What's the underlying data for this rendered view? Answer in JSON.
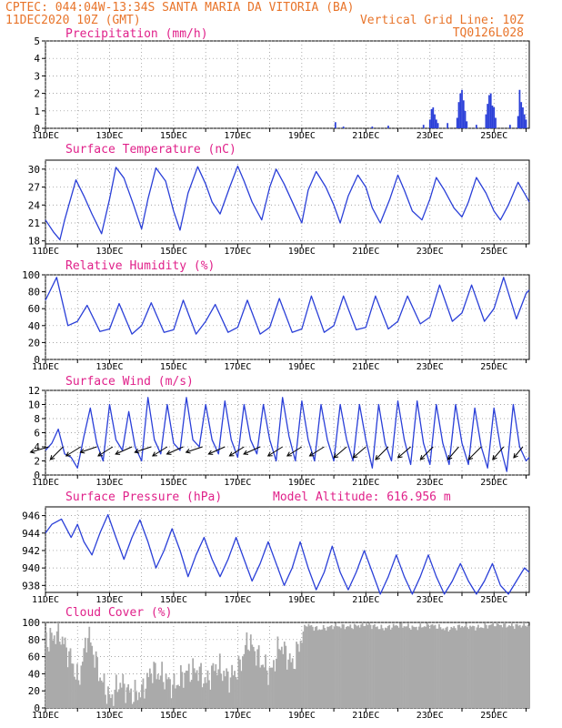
{
  "header": {
    "line1": "CPTEC:  044:04W-13:34S  SANTA MARIA DA VITORIA (BA)",
    "line2_left": "11DEC2020 10Z (GMT)",
    "line2_right": "Vertical Grid Line: 10Z",
    "line3_right": "TQ0126L028"
  },
  "colors": {
    "line": "#2a3fd8",
    "title": "#e0218a",
    "header": "#e8742a",
    "cloud": "#aaaaaa",
    "grid": "#888888"
  },
  "x_labels": [
    "11DEC",
    "13DEC",
    "15DEC",
    "17DEC",
    "19DEC",
    "21DEC",
    "23DEC",
    "25DEC"
  ],
  "chart_data": [
    {
      "type": "bar",
      "title": "Precipitation (mm/h)",
      "ylim": [
        0,
        5
      ],
      "yticks": [
        0,
        1,
        2,
        3,
        4,
        5
      ],
      "x_start_day": 11,
      "x_end_day": 26.1,
      "bars": [
        {
          "x": 20.05,
          "v": 0.35
        },
        {
          "x": 20.3,
          "v": 0.1
        },
        {
          "x": 21.2,
          "v": 0.1
        },
        {
          "x": 21.7,
          "v": 0.15
        },
        {
          "x": 22.8,
          "v": 0.2
        },
        {
          "x": 23.0,
          "v": 0.5
        },
        {
          "x": 23.05,
          "v": 1.1
        },
        {
          "x": 23.1,
          "v": 1.2
        },
        {
          "x": 23.15,
          "v": 0.8
        },
        {
          "x": 23.2,
          "v": 0.5
        },
        {
          "x": 23.25,
          "v": 0.3
        },
        {
          "x": 23.55,
          "v": 0.3
        },
        {
          "x": 23.85,
          "v": 0.6
        },
        {
          "x": 23.9,
          "v": 1.5
        },
        {
          "x": 23.95,
          "v": 2.0
        },
        {
          "x": 24.0,
          "v": 2.2
        },
        {
          "x": 24.05,
          "v": 1.6
        },
        {
          "x": 24.1,
          "v": 1.0
        },
        {
          "x": 24.15,
          "v": 0.4
        },
        {
          "x": 24.45,
          "v": 0.2
        },
        {
          "x": 24.75,
          "v": 0.8
        },
        {
          "x": 24.8,
          "v": 1.4
        },
        {
          "x": 24.85,
          "v": 1.9
        },
        {
          "x": 24.9,
          "v": 2.0
        },
        {
          "x": 24.95,
          "v": 1.3
        },
        {
          "x": 25.0,
          "v": 1.2
        },
        {
          "x": 25.05,
          "v": 0.6
        },
        {
          "x": 25.5,
          "v": 0.2
        },
        {
          "x": 25.75,
          "v": 0.7
        },
        {
          "x": 25.8,
          "v": 2.2
        },
        {
          "x": 25.85,
          "v": 1.5
        },
        {
          "x": 25.9,
          "v": 1.2
        },
        {
          "x": 25.95,
          "v": 0.8
        },
        {
          "x": 26.0,
          "v": 0.5
        }
      ]
    },
    {
      "type": "line",
      "title": "Surface Temperature (nC)",
      "ylim": [
        17.5,
        31.5
      ],
      "yticks": [
        18,
        21,
        24,
        27,
        30
      ],
      "x_start_day": 11,
      "x_end_day": 26.1,
      "x": [
        11.0,
        11.25,
        11.45,
        11.6,
        11.95,
        12.2,
        12.45,
        12.75,
        13.0,
        13.2,
        13.45,
        13.75,
        14.0,
        14.2,
        14.45,
        14.75,
        15.0,
        15.2,
        15.45,
        15.75,
        16.0,
        16.2,
        16.45,
        16.75,
        17.0,
        17.2,
        17.45,
        17.75,
        18.0,
        18.2,
        18.45,
        18.75,
        19.0,
        19.2,
        19.45,
        19.75,
        20.0,
        20.2,
        20.45,
        20.75,
        21.0,
        21.2,
        21.45,
        21.75,
        22.0,
        22.2,
        22.45,
        22.75,
        23.0,
        23.2,
        23.45,
        23.75,
        24.0,
        24.2,
        24.45,
        24.75,
        25.0,
        25.2,
        25.45,
        25.75,
        26.0,
        26.1
      ],
      "y": [
        21.5,
        19.5,
        18.2,
        21.5,
        28.2,
        25.5,
        22.5,
        19.2,
        25.0,
        30.3,
        28.5,
        24.0,
        20.0,
        25.0,
        30.2,
        28.0,
        23.0,
        19.8,
        26.0,
        30.4,
        27.5,
        24.5,
        22.5,
        27.0,
        30.5,
        28.0,
        24.5,
        21.5,
        27.0,
        30.0,
        27.5,
        24.0,
        21.0,
        26.5,
        29.6,
        27.0,
        24.0,
        21.0,
        25.5,
        29.0,
        27.0,
        23.5,
        21.0,
        25.0,
        29.0,
        26.5,
        23.0,
        21.5,
        25.0,
        28.6,
        26.5,
        23.5,
        22.0,
        24.5,
        28.6,
        26.0,
        23.0,
        21.5,
        24.0,
        27.8,
        25.5,
        24.5
      ]
    },
    {
      "type": "line",
      "title": "Relative Humidity (%)",
      "ylim": [
        0,
        100
      ],
      "yticks": [
        0,
        20,
        40,
        60,
        80,
        100
      ],
      "x_start_day": 11,
      "x_end_day": 26.1,
      "x": [
        11.0,
        11.35,
        11.7,
        12.0,
        12.3,
        12.7,
        13.0,
        13.3,
        13.7,
        14.0,
        14.3,
        14.7,
        15.0,
        15.3,
        15.7,
        16.0,
        16.3,
        16.7,
        17.0,
        17.3,
        17.7,
        18.0,
        18.3,
        18.7,
        19.0,
        19.3,
        19.7,
        20.0,
        20.3,
        20.7,
        21.0,
        21.3,
        21.7,
        22.0,
        22.3,
        22.7,
        23.0,
        23.3,
        23.7,
        24.0,
        24.3,
        24.7,
        25.0,
        25.3,
        25.7,
        26.0,
        26.1
      ],
      "y": [
        70,
        97,
        40,
        45,
        64,
        33,
        36,
        66,
        30,
        40,
        67,
        32,
        35,
        70,
        30,
        45,
        65,
        32,
        38,
        70,
        30,
        38,
        72,
        32,
        36,
        75,
        32,
        40,
        75,
        35,
        38,
        75,
        36,
        45,
        75,
        42,
        50,
        88,
        45,
        55,
        88,
        45,
        60,
        97,
        48,
        78,
        82
      ]
    },
    {
      "type": "line",
      "title": "Surface Wind (m/s)",
      "ylim": [
        0,
        12
      ],
      "yticks": [
        0,
        2,
        4,
        6,
        8,
        10,
        12
      ],
      "x_start_day": 11,
      "x_end_day": 26.1,
      "x": [
        11.0,
        11.2,
        11.4,
        11.6,
        11.8,
        12.0,
        12.2,
        12.4,
        12.6,
        12.8,
        13.0,
        13.2,
        13.4,
        13.6,
        13.8,
        14.0,
        14.2,
        14.4,
        14.6,
        14.8,
        15.0,
        15.2,
        15.4,
        15.6,
        15.8,
        16.0,
        16.2,
        16.4,
        16.6,
        16.8,
        17.0,
        17.2,
        17.4,
        17.6,
        17.8,
        18.0,
        18.2,
        18.4,
        18.6,
        18.8,
        19.0,
        19.2,
        19.4,
        19.6,
        19.8,
        20.0,
        20.2,
        20.4,
        20.6,
        20.8,
        21.0,
        21.2,
        21.4,
        21.6,
        21.8,
        22.0,
        22.2,
        22.4,
        22.6,
        22.8,
        23.0,
        23.2,
        23.4,
        23.6,
        23.8,
        24.0,
        24.2,
        24.4,
        24.6,
        24.8,
        25.0,
        25.2,
        25.4,
        25.6,
        25.8,
        26.0,
        26.1
      ],
      "y": [
        3.5,
        4.5,
        6.5,
        3.0,
        2.5,
        1.0,
        5.5,
        9.5,
        4.5,
        2.0,
        10.0,
        5.0,
        3.5,
        9.0,
        4.0,
        2.0,
        11.0,
        5.0,
        3.0,
        10.0,
        4.5,
        3.5,
        11.0,
        5.0,
        4.0,
        10.0,
        5.0,
        3.0,
        10.5,
        5.0,
        2.5,
        10.0,
        5.0,
        3.0,
        10.0,
        5.0,
        2.0,
        11.0,
        5.5,
        2.0,
        10.5,
        5.0,
        2.0,
        10.0,
        5.0,
        2.0,
        10.0,
        5.0,
        2.0,
        10.0,
        5.0,
        1.0,
        10.0,
        4.5,
        2.0,
        10.5,
        5.0,
        1.5,
        10.5,
        4.5,
        1.5,
        10.0,
        4.5,
        1.5,
        10.0,
        4.5,
        1.5,
        9.5,
        4.0,
        1.0,
        9.5,
        4.0,
        0.5,
        10.0,
        4.0,
        2.0,
        2.5
      ],
      "vectors": [
        {
          "x": 11.1,
          "u": -1,
          "v": -0.3
        },
        {
          "x": 11.55,
          "u": -0.7,
          "v": -0.7
        },
        {
          "x": 12.1,
          "u": -0.8,
          "v": -0.5
        },
        {
          "x": 12.6,
          "u": -0.9,
          "v": -0.3
        },
        {
          "x": 13.1,
          "u": -0.8,
          "v": -0.5
        },
        {
          "x": 13.7,
          "u": -0.9,
          "v": -0.4
        },
        {
          "x": 14.3,
          "u": -0.9,
          "v": -0.3
        },
        {
          "x": 14.8,
          "u": -0.8,
          "v": -0.5
        },
        {
          "x": 15.3,
          "u": -0.9,
          "v": -0.4
        },
        {
          "x": 15.9,
          "u": -0.9,
          "v": -0.3
        },
        {
          "x": 16.6,
          "u": -0.9,
          "v": -0.4
        },
        {
          "x": 17.2,
          "u": -0.8,
          "v": -0.5
        },
        {
          "x": 17.7,
          "u": -0.9,
          "v": -0.4
        },
        {
          "x": 18.4,
          "u": -0.8,
          "v": -0.5
        },
        {
          "x": 19.0,
          "u": -0.8,
          "v": -0.5
        },
        {
          "x": 19.7,
          "u": -0.8,
          "v": -0.5
        },
        {
          "x": 20.4,
          "u": -0.7,
          "v": -0.6
        },
        {
          "x": 21.0,
          "u": -0.7,
          "v": -0.6
        },
        {
          "x": 21.7,
          "u": -0.7,
          "v": -0.7
        },
        {
          "x": 22.4,
          "u": -0.7,
          "v": -0.6
        },
        {
          "x": 23.1,
          "u": -0.7,
          "v": -0.7
        },
        {
          "x": 23.9,
          "u": -0.6,
          "v": -0.7
        },
        {
          "x": 24.6,
          "u": -0.7,
          "v": -0.7
        },
        {
          "x": 25.3,
          "u": -0.6,
          "v": -0.7
        },
        {
          "x": 25.9,
          "u": -0.5,
          "v": -0.6
        }
      ]
    },
    {
      "type": "line",
      "title": "Surface Pressure (hPa)",
      "note": "Model Altitude: 616.956 m",
      "ylim": [
        937.2,
        947
      ],
      "yticks": [
        938,
        940,
        942,
        944,
        946
      ],
      "x_start_day": 11,
      "x_end_day": 26.1,
      "x": [
        11.0,
        11.2,
        11.5,
        11.8,
        12.0,
        12.2,
        12.45,
        12.7,
        12.95,
        13.2,
        13.45,
        13.7,
        13.95,
        14.2,
        14.45,
        14.7,
        14.95,
        15.2,
        15.45,
        15.7,
        15.95,
        16.2,
        16.45,
        16.7,
        16.95,
        17.2,
        17.45,
        17.7,
        17.95,
        18.2,
        18.45,
        18.7,
        18.95,
        19.2,
        19.45,
        19.7,
        19.95,
        20.2,
        20.45,
        20.7,
        20.95,
        21.2,
        21.45,
        21.7,
        21.95,
        22.2,
        22.45,
        22.7,
        22.95,
        23.2,
        23.45,
        23.7,
        23.95,
        24.2,
        24.45,
        24.7,
        24.95,
        25.2,
        25.45,
        25.7,
        25.95,
        26.1
      ],
      "y": [
        944.0,
        945.0,
        945.6,
        943.5,
        945.0,
        943.0,
        941.5,
        944.0,
        946.1,
        943.5,
        941.0,
        943.5,
        945.5,
        943.0,
        940.0,
        942.0,
        944.5,
        942.0,
        939.0,
        941.5,
        943.5,
        941.0,
        939.0,
        941.0,
        943.5,
        941.0,
        938.5,
        940.5,
        943.0,
        940.5,
        938.0,
        940.0,
        943.0,
        940.0,
        937.5,
        939.5,
        942.5,
        939.5,
        937.5,
        939.5,
        942.0,
        939.5,
        937.0,
        939.0,
        941.5,
        939.0,
        937.0,
        939.0,
        941.5,
        939.0,
        937.0,
        938.5,
        940.5,
        938.5,
        937.0,
        938.5,
        940.5,
        938.0,
        937.0,
        938.5,
        940.0,
        939.5
      ]
    },
    {
      "type": "bar",
      "title": "Cloud Cover (%)",
      "ylim": [
        0,
        100
      ],
      "yticks": [
        0,
        20,
        40,
        60,
        80,
        100
      ],
      "x_start_day": 11,
      "x_end_day": 26.1,
      "cloud_series": [
        {
          "x": 11.0,
          "v": 78
        },
        {
          "x": 11.4,
          "v": 88
        },
        {
          "x": 11.8,
          "v": 55
        },
        {
          "x": 12.0,
          "v": 30
        },
        {
          "x": 12.3,
          "v": 88
        },
        {
          "x": 12.7,
          "v": 35
        },
        {
          "x": 13.0,
          "v": 10
        },
        {
          "x": 13.3,
          "v": 30
        },
        {
          "x": 13.7,
          "v": 15
        },
        {
          "x": 14.0,
          "v": 20
        },
        {
          "x": 14.3,
          "v": 45
        },
        {
          "x": 14.7,
          "v": 35
        },
        {
          "x": 15.0,
          "v": 25
        },
        {
          "x": 15.3,
          "v": 40
        },
        {
          "x": 15.7,
          "v": 45
        },
        {
          "x": 16.0,
          "v": 30
        },
        {
          "x": 16.3,
          "v": 50
        },
        {
          "x": 16.7,
          "v": 35
        },
        {
          "x": 17.0,
          "v": 45
        },
        {
          "x": 17.3,
          "v": 80
        },
        {
          "x": 17.7,
          "v": 55
        },
        {
          "x": 18.0,
          "v": 40
        },
        {
          "x": 18.3,
          "v": 75
        },
        {
          "x": 18.7,
          "v": 50
        },
        {
          "x": 18.95,
          "v": 80
        },
        {
          "x": 19.1,
          "v": 98
        },
        {
          "x": 19.5,
          "v": 92
        },
        {
          "x": 20.0,
          "v": 96
        },
        {
          "x": 20.5,
          "v": 95
        },
        {
          "x": 21.0,
          "v": 98
        },
        {
          "x": 21.5,
          "v": 93
        },
        {
          "x": 22.0,
          "v": 97
        },
        {
          "x": 22.5,
          "v": 94
        },
        {
          "x": 23.0,
          "v": 97
        },
        {
          "x": 23.5,
          "v": 92
        },
        {
          "x": 24.0,
          "v": 96
        },
        {
          "x": 24.5,
          "v": 94
        },
        {
          "x": 25.0,
          "v": 98
        },
        {
          "x": 25.5,
          "v": 96
        },
        {
          "x": 26.0,
          "v": 97
        },
        {
          "x": 26.1,
          "v": 97
        }
      ]
    }
  ]
}
